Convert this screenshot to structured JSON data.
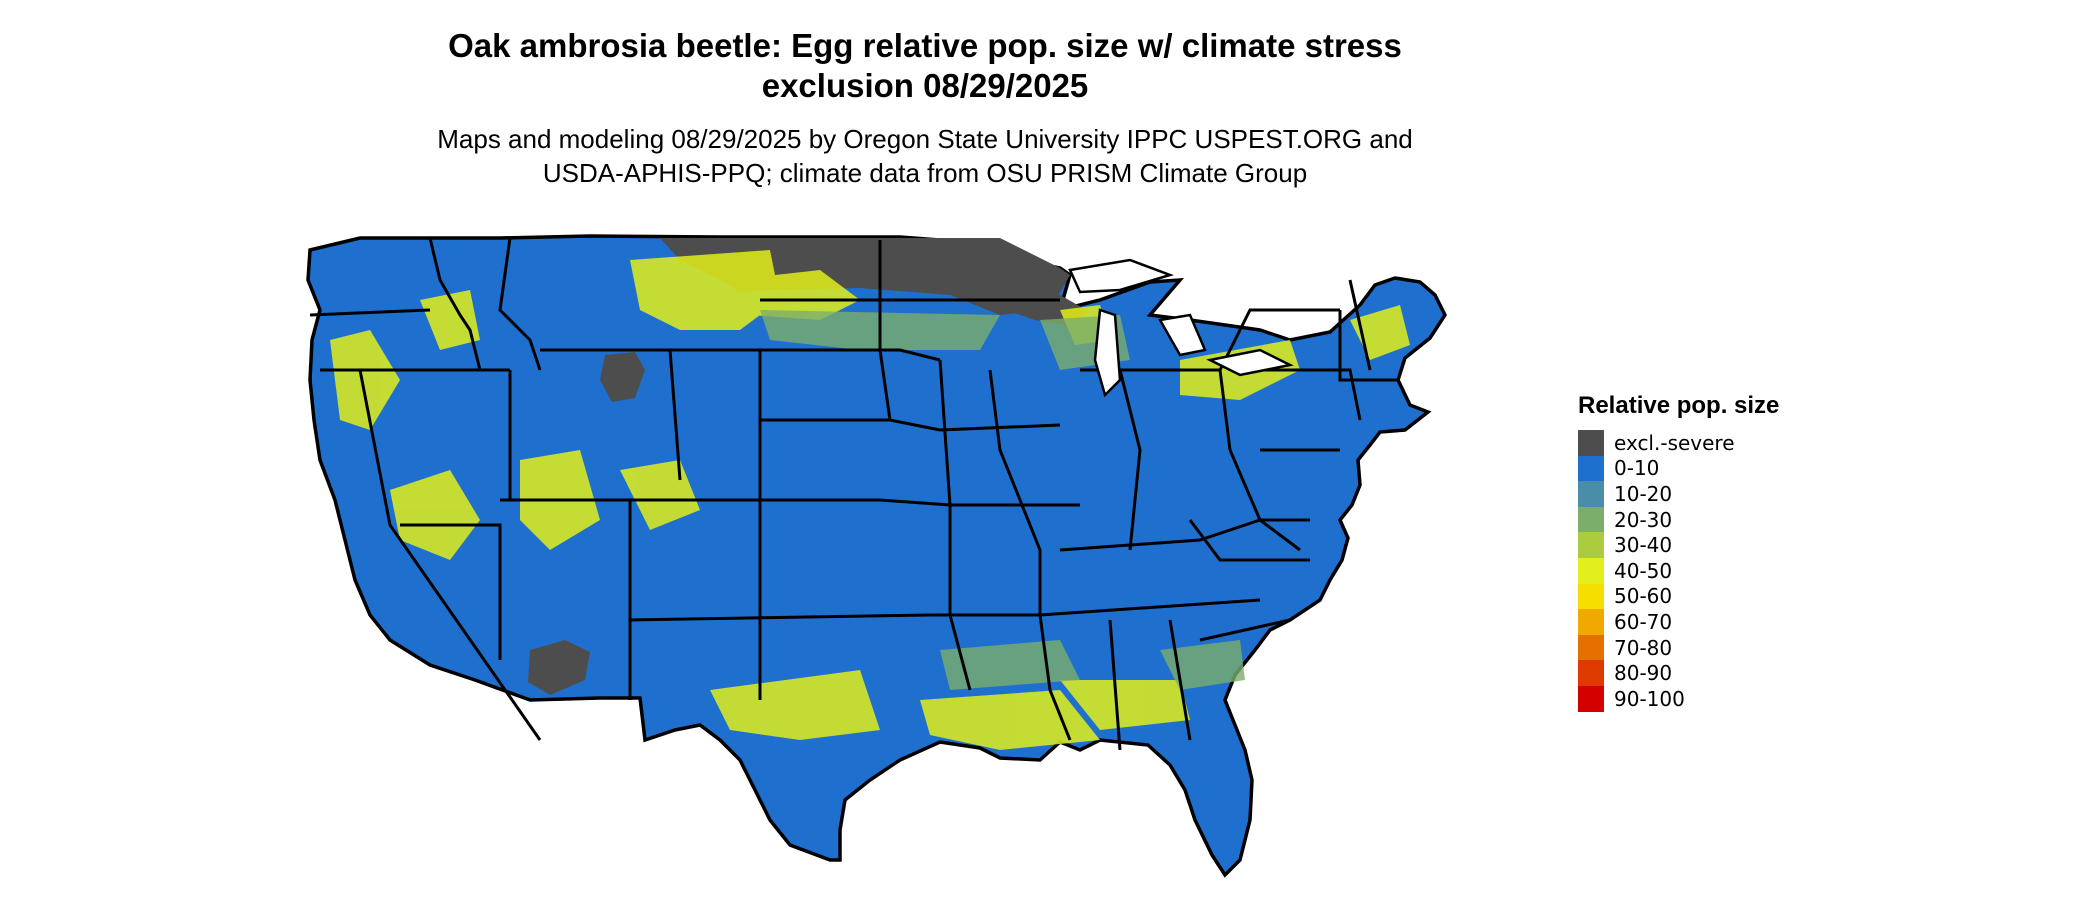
{
  "header": {
    "title_line1": "Oak ambrosia beetle: Egg relative pop. size w/ climate stress",
    "title_line2": "exclusion 08/29/2025",
    "subtitle_line1": "Maps and modeling 08/29/2025 by Oregon State University IPPC USPEST.ORG and",
    "subtitle_line2": "USDA-APHIS-PPQ; climate data from OSU PRISM Climate Group"
  },
  "map": {
    "region": "Contiguous United States",
    "base_color": "#1f6fcf",
    "excluded_color": "#4d4d4d",
    "outline_color": "#000000"
  },
  "legend": {
    "title": "Relative pop. size",
    "items": [
      {
        "label": "excl.-severe",
        "color": "#4d4d4d"
      },
      {
        "label": "0-10",
        "color": "#1f6fcf"
      },
      {
        "label": "10-20",
        "color": "#4a8da8"
      },
      {
        "label": "20-30",
        "color": "#7aae6a"
      },
      {
        "label": "30-40",
        "color": "#aacc3e"
      },
      {
        "label": "40-50",
        "color": "#e2ef1a"
      },
      {
        "label": "50-60",
        "color": "#f5de00"
      },
      {
        "label": "60-70",
        "color": "#f0a900"
      },
      {
        "label": "70-80",
        "color": "#e47000"
      },
      {
        "label": "80-90",
        "color": "#de3a00"
      },
      {
        "label": "90-100",
        "color": "#d40000"
      }
    ]
  }
}
